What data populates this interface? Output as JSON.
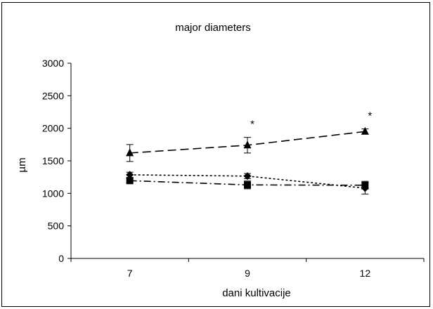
{
  "chart_data": {
    "type": "line",
    "title": "major diameters",
    "xlabel": "dani kultivacije",
    "ylabel": "µm",
    "categories": [
      "7",
      "9",
      "12"
    ],
    "ylim": [
      0,
      3000
    ],
    "yticks": [
      "0",
      "500",
      "1000",
      "1500",
      "2000",
      "2500",
      "3000"
    ],
    "grid": false,
    "series": [
      {
        "marker": "triangle",
        "dash": "long-dash",
        "values": [
          1620,
          1740,
          1950
        ],
        "errors": [
          130,
          120,
          40
        ]
      },
      {
        "marker": "diamond",
        "dash": "dotted",
        "values": [
          1285,
          1265,
          1080
        ],
        "errors": [
          40,
          40,
          90
        ]
      },
      {
        "marker": "square",
        "dash": "dash-dot",
        "values": [
          1195,
          1130,
          1125
        ],
        "errors": [
          30,
          60,
          60
        ]
      }
    ],
    "annotations": [
      {
        "category": "9",
        "text": "*"
      },
      {
        "category": "12",
        "text": "*"
      }
    ]
  }
}
